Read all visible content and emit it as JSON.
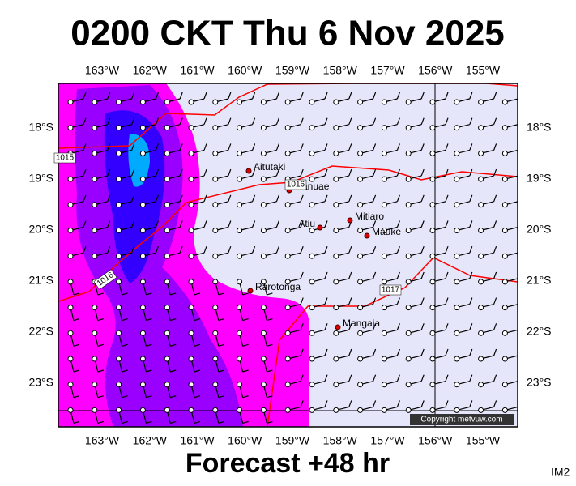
{
  "title": "0200 CKT Thu 6 Nov 2025",
  "footer": "Forecast +48 hr",
  "code": "IM2",
  "copyright": "Copyright metvuw.com",
  "longitudes": [
    "163°W",
    "162°W",
    "161°W",
    "160°W",
    "159°W",
    "158°W",
    "157°W",
    "156°W",
    "155°W"
  ],
  "latitudes": [
    "18°S",
    "19°S",
    "20°S",
    "21°S",
    "22°S",
    "23°S"
  ],
  "places": [
    "Aitutaki",
    "Manuae",
    "Atiu",
    "Mitiaro",
    "Mauke",
    "Rarotonga",
    "Mangaia"
  ],
  "isobar_labels": [
    "1015",
    "1016",
    "1016",
    "1017"
  ]
}
